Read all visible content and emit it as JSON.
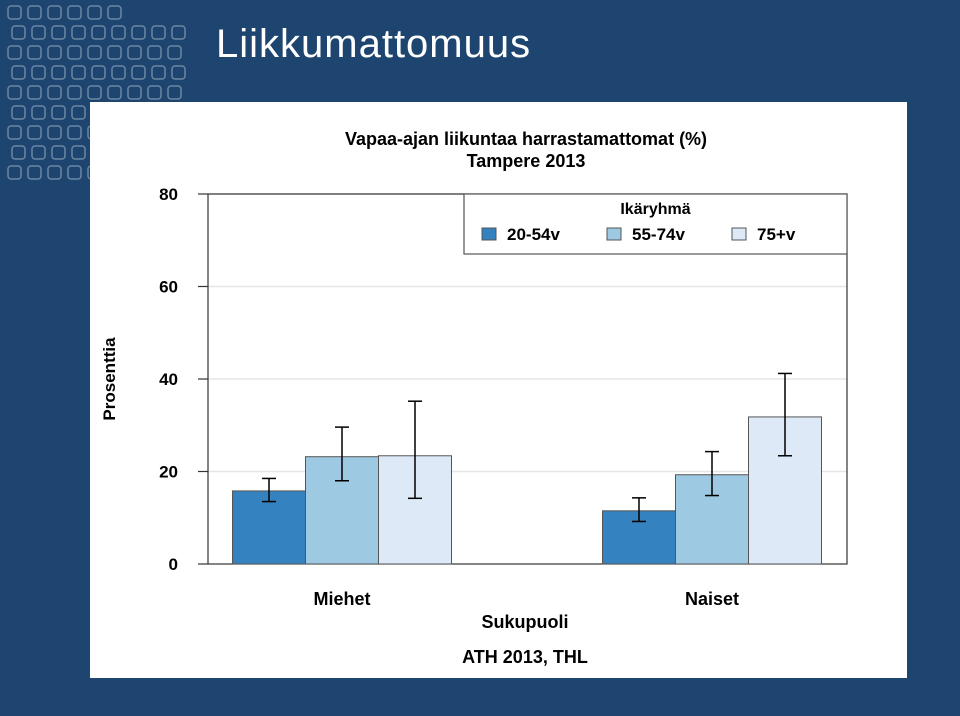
{
  "slide": {
    "title": "Liikkumattomuus"
  },
  "colors": {
    "background": "#1d4570",
    "series_colors": [
      "#3483c0",
      "#9ec9e2",
      "#dde9f6"
    ]
  },
  "chart_data": {
    "type": "bar",
    "title": "Vapaa-ajan liikuntaa harrastamattomat (%)",
    "subtitle": "Tampere 2013",
    "xlabel": "Sukupuoli",
    "ylabel": "Prosenttia",
    "source": "ATH 2013, THL",
    "categories": [
      "Miehet",
      "Naiset"
    ],
    "legend_title": "Ikäryhmä",
    "legend_position": "top-right",
    "ylim": [
      0,
      80
    ],
    "yticks": [
      0,
      20,
      40,
      60,
      80
    ],
    "grid": true,
    "series": [
      {
        "name": "20-54v",
        "values": [
          15.8,
          11.5
        ],
        "lower": [
          13.5,
          9.2
        ],
        "upper": [
          18.5,
          14.3
        ]
      },
      {
        "name": "55-74v",
        "values": [
          23.2,
          19.3
        ],
        "lower": [
          18.0,
          14.8
        ],
        "upper": [
          29.6,
          24.3
        ]
      },
      {
        "name": "75+v",
        "values": [
          23.4,
          31.8
        ],
        "lower": [
          14.2,
          23.4
        ],
        "upper": [
          35.2,
          41.2
        ]
      }
    ]
  }
}
